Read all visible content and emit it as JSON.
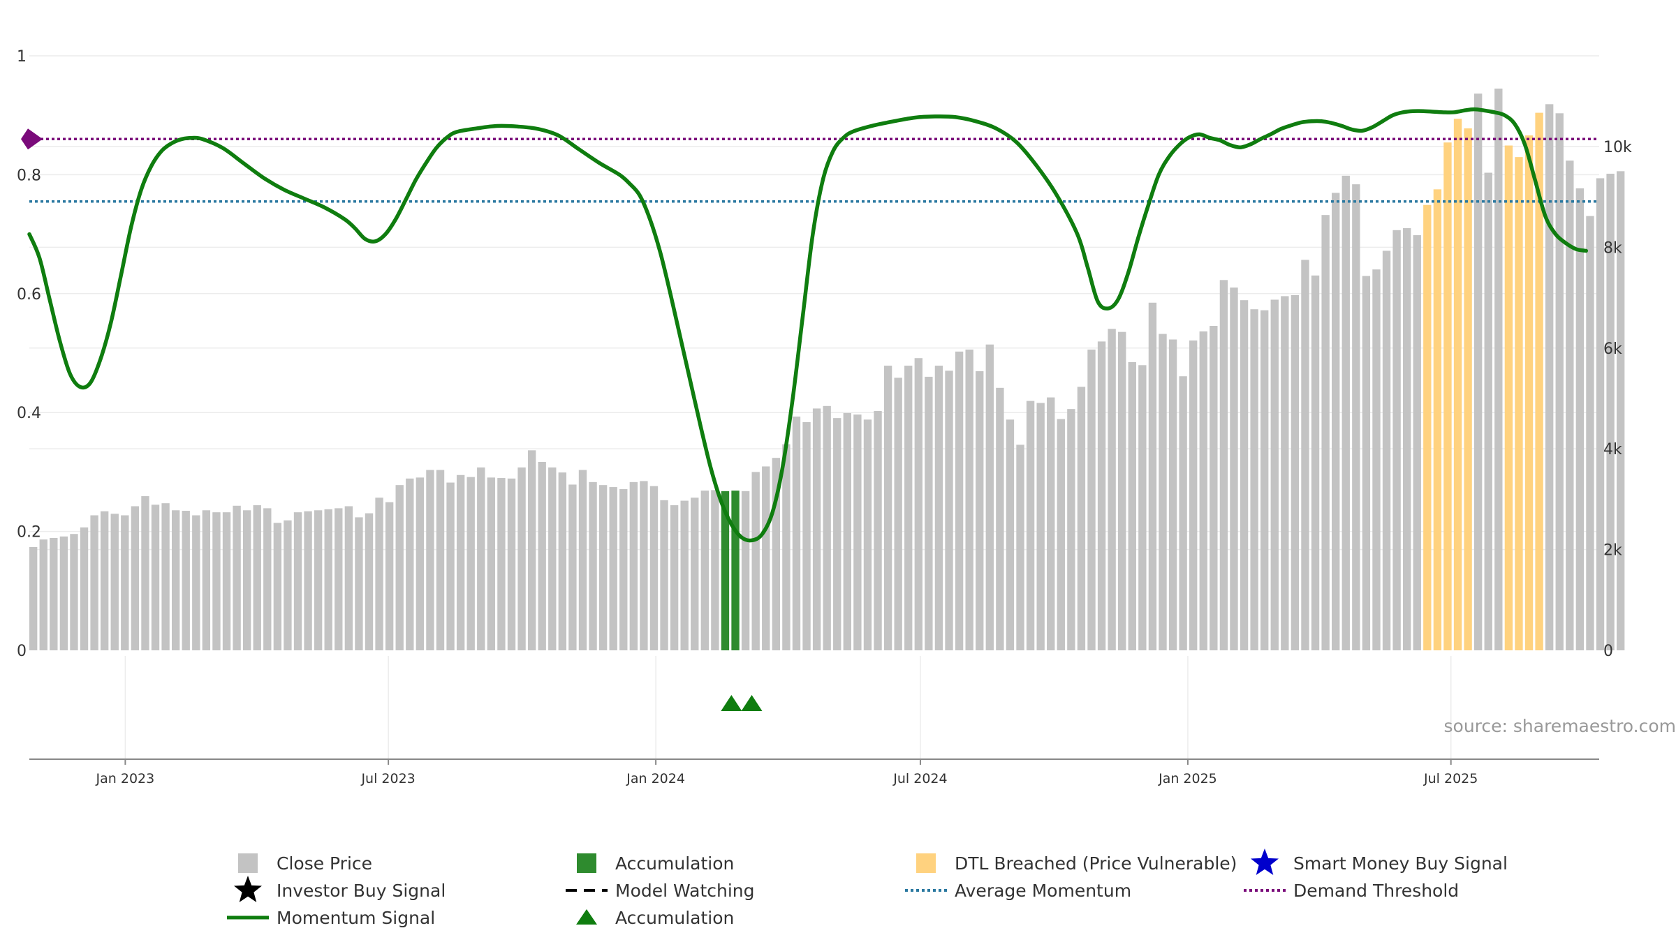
{
  "chart_data": {
    "type": "bar+line",
    "title": "",
    "source": "source: sharemaestro.com",
    "left_axis": {
      "ticks": [
        0,
        0.2,
        0.4,
        0.6,
        0.8,
        1
      ],
      "tick_labels": [
        "0",
        "0.2",
        "0.4",
        "0.6",
        "0.8",
        "1"
      ],
      "range": [
        0,
        1
      ]
    },
    "right_axis": {
      "ticks": [
        0,
        2000,
        4000,
        6000,
        8000,
        10000
      ],
      "tick_labels": [
        "0",
        "2k",
        "4k",
        "6k",
        "8k",
        "10k"
      ],
      "range": [
        0,
        11800
      ]
    },
    "x_axis": {
      "tick_labels": [
        "Jan 2023",
        "Jul 2023",
        "Jan 2024",
        "Jul 2024",
        "Jan 2025",
        "Jul 2025"
      ],
      "tick_dates": [
        "2023-01-01",
        "2023-07-01",
        "2024-01-01",
        "2024-07-01",
        "2025-01-01",
        "2025-07-01"
      ],
      "start": "2022-10-27",
      "end": "2025-10-11"
    },
    "close_price": {
      "name": "Close Price",
      "start": "2022-10-27",
      "interval_days": 7,
      "values": [
        2050,
        2200,
        2230,
        2260,
        2310,
        2440,
        2680,
        2760,
        2710,
        2680,
        2860,
        3060,
        2890,
        2920,
        2780,
        2770,
        2680,
        2780,
        2740,
        2740,
        2870,
        2780,
        2880,
        2820,
        2530,
        2580,
        2740,
        2760,
        2780,
        2800,
        2820,
        2860,
        2640,
        2720,
        3030,
        2940,
        3280,
        3410,
        3430,
        3580,
        3580,
        3330,
        3480,
        3440,
        3630,
        3430,
        3420,
        3410,
        3630,
        3970,
        3740,
        3630,
        3530,
        3290,
        3580,
        3340,
        3280,
        3240,
        3200,
        3340,
        3360,
        3260,
        2980,
        2880,
        2970,
        3030,
        3170,
        3180,
        3160,
        3170,
        3160,
        3540,
        3650,
        3820,
        4090,
        4640,
        4530,
        4800,
        4850,
        4610,
        4710,
        4680,
        4580,
        4750,
        5650,
        5410,
        5650,
        5800,
        5430,
        5650,
        5550,
        5930,
        5970,
        5540,
        6070,
        5210,
        4580,
        4080,
        4950,
        4910,
        5020,
        4590,
        4790,
        5230,
        5970,
        6130,
        6380,
        6320,
        5720,
        5660,
        6900,
        6280,
        6170,
        5440,
        6150,
        6330,
        6440,
        7350,
        7200,
        6950,
        6770,
        6750,
        6960,
        7030,
        7050,
        7750,
        7440,
        8640,
        9080,
        9420,
        9250,
        7430,
        7560,
        7930,
        8340,
        8380,
        8240,
        8840,
        9150,
        10080,
        10550,
        10360,
        11050,
        9480,
        11150,
        10020,
        9790,
        10220,
        10670,
        10840,
        10660,
        9720,
        9170,
        8620,
        9370,
        9460,
        9510
      ],
      "accumulation_indices": [
        68,
        69
      ],
      "dtl_breached_indices": [
        137,
        138,
        139,
        140,
        141,
        145,
        146,
        147,
        148
      ]
    },
    "momentum_signal": {
      "name": "Momentum Signal",
      "points": [
        [
          "2022-10-27",
          0.7
        ],
        [
          "2022-11-03",
          0.66
        ],
        [
          "2022-11-10",
          0.59
        ],
        [
          "2022-11-17",
          0.52
        ],
        [
          "2022-11-24",
          0.465
        ],
        [
          "2022-12-01",
          0.443
        ],
        [
          "2022-12-08",
          0.45
        ],
        [
          "2022-12-15",
          0.49
        ],
        [
          "2022-12-22",
          0.55
        ],
        [
          "2022-12-29",
          0.63
        ],
        [
          "2023-01-05",
          0.712
        ],
        [
          "2023-01-12",
          0.775
        ],
        [
          "2023-01-19",
          0.815
        ],
        [
          "2023-01-26",
          0.84
        ],
        [
          "2023-02-02",
          0.853
        ],
        [
          "2023-02-09",
          0.86
        ],
        [
          "2023-02-16",
          0.862
        ],
        [
          "2023-02-23",
          0.86
        ],
        [
          "2023-03-09",
          0.845
        ],
        [
          "2023-03-23",
          0.82
        ],
        [
          "2023-04-06",
          0.795
        ],
        [
          "2023-04-20",
          0.775
        ],
        [
          "2023-05-04",
          0.76
        ],
        [
          "2023-05-18",
          0.745
        ],
        [
          "2023-06-01",
          0.725
        ],
        [
          "2023-06-08",
          0.71
        ],
        [
          "2023-06-15",
          0.692
        ],
        [
          "2023-06-22",
          0.688
        ],
        [
          "2023-06-29",
          0.7
        ],
        [
          "2023-07-06",
          0.725
        ],
        [
          "2023-07-13",
          0.758
        ],
        [
          "2023-07-20",
          0.792
        ],
        [
          "2023-07-27",
          0.82
        ],
        [
          "2023-08-03",
          0.845
        ],
        [
          "2023-08-10",
          0.862
        ],
        [
          "2023-08-17",
          0.872
        ],
        [
          "2023-08-31",
          0.878
        ],
        [
          "2023-09-14",
          0.882
        ],
        [
          "2023-09-28",
          0.881
        ],
        [
          "2023-10-12",
          0.877
        ],
        [
          "2023-10-26",
          0.866
        ],
        [
          "2023-11-09",
          0.843
        ],
        [
          "2023-11-23",
          0.82
        ],
        [
          "2023-12-07",
          0.8
        ],
        [
          "2023-12-14",
          0.785
        ],
        [
          "2023-12-21",
          0.765
        ],
        [
          "2023-12-28",
          0.725
        ],
        [
          "2024-01-04",
          0.67
        ],
        [
          "2024-01-11",
          0.6
        ],
        [
          "2024-01-18",
          0.525
        ],
        [
          "2024-01-25",
          0.45
        ],
        [
          "2024-02-01",
          0.375
        ],
        [
          "2024-02-08",
          0.305
        ],
        [
          "2024-02-15",
          0.25
        ],
        [
          "2024-02-22",
          0.212
        ],
        [
          "2024-02-29",
          0.19
        ],
        [
          "2024-03-07",
          0.185
        ],
        [
          "2024-03-14",
          0.195
        ],
        [
          "2024-03-21",
          0.23
        ],
        [
          "2024-03-28",
          0.305
        ],
        [
          "2024-04-04",
          0.42
        ],
        [
          "2024-04-11",
          0.56
        ],
        [
          "2024-04-18",
          0.7
        ],
        [
          "2024-04-25",
          0.792
        ],
        [
          "2024-05-02",
          0.84
        ],
        [
          "2024-05-09",
          0.862
        ],
        [
          "2024-05-16",
          0.873
        ],
        [
          "2024-05-30",
          0.883
        ],
        [
          "2024-06-13",
          0.89
        ],
        [
          "2024-06-27",
          0.896
        ],
        [
          "2024-07-11",
          0.898
        ],
        [
          "2024-07-25",
          0.897
        ],
        [
          "2024-08-08",
          0.89
        ],
        [
          "2024-08-22",
          0.878
        ],
        [
          "2024-09-05",
          0.855
        ],
        [
          "2024-09-19",
          0.815
        ],
        [
          "2024-10-03",
          0.765
        ],
        [
          "2024-10-17",
          0.7
        ],
        [
          "2024-10-24",
          0.645
        ],
        [
          "2024-10-31",
          0.587
        ],
        [
          "2024-11-07",
          0.575
        ],
        [
          "2024-11-14",
          0.59
        ],
        [
          "2024-11-21",
          0.635
        ],
        [
          "2024-11-28",
          0.695
        ],
        [
          "2024-12-05",
          0.75
        ],
        [
          "2024-12-12",
          0.8
        ],
        [
          "2024-12-19",
          0.83
        ],
        [
          "2024-12-26",
          0.85
        ],
        [
          "2025-01-02",
          0.863
        ],
        [
          "2025-01-09",
          0.868
        ],
        [
          "2025-01-16",
          0.862
        ],
        [
          "2025-01-23",
          0.858
        ],
        [
          "2025-01-30",
          0.85
        ],
        [
          "2025-02-06",
          0.846
        ],
        [
          "2025-02-13",
          0.851
        ],
        [
          "2025-02-20",
          0.86
        ],
        [
          "2025-02-27",
          0.868
        ],
        [
          "2025-03-06",
          0.877
        ],
        [
          "2025-03-13",
          0.883
        ],
        [
          "2025-03-20",
          0.888
        ],
        [
          "2025-03-27",
          0.89
        ],
        [
          "2025-04-03",
          0.89
        ],
        [
          "2025-04-10",
          0.887
        ],
        [
          "2025-04-17",
          0.882
        ],
        [
          "2025-04-24",
          0.876
        ],
        [
          "2025-05-01",
          0.874
        ],
        [
          "2025-05-08",
          0.88
        ],
        [
          "2025-05-15",
          0.89
        ],
        [
          "2025-05-22",
          0.9
        ],
        [
          "2025-05-29",
          0.905
        ],
        [
          "2025-06-05",
          0.907
        ],
        [
          "2025-06-12",
          0.907
        ],
        [
          "2025-06-19",
          0.906
        ],
        [
          "2025-06-26",
          0.905
        ],
        [
          "2025-07-03",
          0.905
        ],
        [
          "2025-07-10",
          0.908
        ],
        [
          "2025-07-17",
          0.91
        ],
        [
          "2025-07-24",
          0.908
        ],
        [
          "2025-07-31",
          0.905
        ],
        [
          "2025-08-07",
          0.9
        ],
        [
          "2025-08-14",
          0.885
        ],
        [
          "2025-08-21",
          0.85
        ],
        [
          "2025-08-28",
          0.79
        ],
        [
          "2025-09-04",
          0.73
        ],
        [
          "2025-09-11",
          0.7
        ],
        [
          "2025-09-18",
          0.685
        ],
        [
          "2025-09-25",
          0.675
        ],
        [
          "2025-10-02",
          0.672
        ]
      ]
    },
    "average_momentum": {
      "name": "Average Momentum",
      "value": 0.755
    },
    "demand_threshold": {
      "name": "Demand Threshold",
      "value": 0.86
    },
    "accumulation_markers": {
      "name": "Accumulation",
      "dates": [
        "2024-02-22",
        "2024-03-07"
      ]
    },
    "legend": [
      {
        "label": "Close Price",
        "swatch": "gray-square"
      },
      {
        "label": "Accumulation",
        "swatch": "green-square"
      },
      {
        "label": "DTL Breached (Price Vulnerable)",
        "swatch": "orange-square"
      },
      {
        "label": "Smart Money Buy Signal",
        "swatch": "blue-star"
      },
      {
        "label": "Investor Buy Signal",
        "swatch": "black-star"
      },
      {
        "label": "Model Watching",
        "swatch": "black-dash"
      },
      {
        "label": "Average Momentum",
        "swatch": "blue-dotted"
      },
      {
        "label": "Demand Threshold",
        "swatch": "purple-dotted"
      },
      {
        "label": "Momentum Signal",
        "swatch": "green-line"
      },
      {
        "label": "Accumulation",
        "swatch": "green-triangle"
      }
    ],
    "colors": {
      "close_price": "#c3c3c3",
      "accumulation": "#2e8b2e",
      "dtl_breached": "#ffd27f",
      "momentum": "#0f7d0f",
      "average_momentum": "#2a78a0",
      "demand_threshold": "#7a0a7a",
      "smart_money": "#0000cc",
      "investor": "#000000",
      "model_watching": "#000000",
      "triangle": "#0f7d0f",
      "grid": "#ececec",
      "axis": "#888888"
    }
  }
}
